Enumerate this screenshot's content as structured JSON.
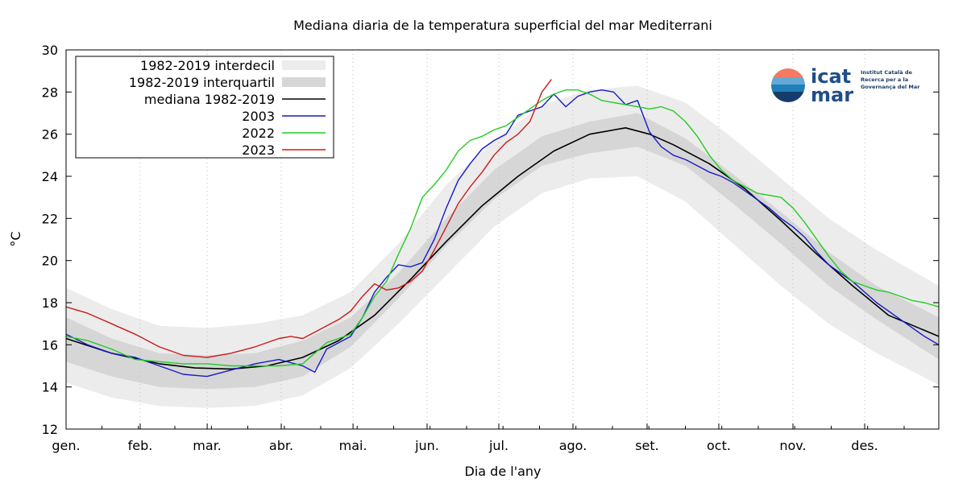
{
  "chart_data": {
    "type": "line",
    "title": "Mediana diaria de la temperatura superficial del mar Mediterrani",
    "xlabel": "Dia de l'any",
    "ylabel": "°C",
    "xlim": [
      1,
      366
    ],
    "ylim": [
      12,
      30
    ],
    "yticks": [
      12,
      14,
      16,
      18,
      20,
      22,
      24,
      26,
      28,
      30
    ],
    "months": [
      {
        "label": "gen.",
        "day": 1
      },
      {
        "label": "feb.",
        "day": 32
      },
      {
        "label": "mar.",
        "day": 60
      },
      {
        "label": "abr.",
        "day": 91
      },
      {
        "label": "mai.",
        "day": 121
      },
      {
        "label": "jun.",
        "day": 152
      },
      {
        "label": "jul.",
        "day": 182
      },
      {
        "label": "ago.",
        "day": 213
      },
      {
        "label": "set.",
        "day": 244
      },
      {
        "label": "oct.",
        "day": 274
      },
      {
        "label": "nov.",
        "day": 305
      },
      {
        "label": "des.",
        "day": 335
      }
    ],
    "grid": "vertical-dotted",
    "legend_position": "top-left",
    "bands": [
      {
        "name": "1982-2019 interdecil",
        "color": "#ececec",
        "x": [
          1,
          20,
          40,
          60,
          80,
          100,
          120,
          140,
          160,
          180,
          200,
          220,
          240,
          260,
          280,
          300,
          320,
          340,
          366
        ],
        "low": [
          14.2,
          13.5,
          13.1,
          13.0,
          13.1,
          13.6,
          14.9,
          17.0,
          19.3,
          21.6,
          23.2,
          23.9,
          24.0,
          22.8,
          20.8,
          18.8,
          17.0,
          15.6,
          14.1
        ],
        "high": [
          18.7,
          17.7,
          16.9,
          16.8,
          17.0,
          17.4,
          18.5,
          20.8,
          23.6,
          25.7,
          27.4,
          28.1,
          28.3,
          27.5,
          25.8,
          23.9,
          22.0,
          20.5,
          18.8
        ]
      },
      {
        "name": "1982-2019 interquartil",
        "color": "#d6d6d6",
        "x": [
          1,
          20,
          40,
          60,
          80,
          100,
          120,
          140,
          160,
          180,
          200,
          220,
          240,
          260,
          280,
          300,
          320,
          340,
          366
        ],
        "low": [
          15.2,
          14.5,
          14.0,
          13.9,
          14.0,
          14.5,
          15.9,
          18.2,
          20.7,
          22.9,
          24.5,
          25.1,
          25.4,
          24.5,
          22.7,
          20.8,
          18.8,
          17.2,
          15.3
        ],
        "high": [
          17.3,
          16.3,
          15.6,
          15.5,
          15.6,
          16.2,
          17.3,
          19.4,
          22.0,
          24.3,
          25.9,
          26.6,
          27.0,
          25.8,
          24.1,
          22.3,
          20.4,
          18.8,
          17.3
        ]
      }
    ],
    "series": [
      {
        "name": "mediana 1982-2019",
        "color": "#000000",
        "x": [
          1,
          20,
          40,
          55,
          70,
          85,
          100,
          115,
          130,
          145,
          160,
          175,
          190,
          205,
          220,
          235,
          245,
          255,
          270,
          285,
          300,
          315,
          330,
          345,
          366
        ],
        "values": [
          16.3,
          15.6,
          15.1,
          14.9,
          14.85,
          15.0,
          15.4,
          16.2,
          17.4,
          19.1,
          20.9,
          22.6,
          24.0,
          25.2,
          26.0,
          26.3,
          26.0,
          25.5,
          24.6,
          23.4,
          21.9,
          20.3,
          18.8,
          17.4,
          16.4
        ]
      },
      {
        "name": "2003",
        "color": "#1a1acc",
        "x": [
          1,
          10,
          20,
          30,
          40,
          50,
          60,
          70,
          80,
          90,
          100,
          105,
          110,
          120,
          125,
          130,
          135,
          140,
          145,
          150,
          155,
          160,
          165,
          170,
          175,
          180,
          185,
          190,
          195,
          200,
          205,
          210,
          215,
          220,
          225,
          230,
          235,
          240,
          245,
          250,
          255,
          260,
          265,
          270,
          275,
          280,
          285,
          290,
          295,
          300,
          305,
          310,
          315,
          320,
          325,
          330,
          335,
          340,
          345,
          350,
          355,
          360,
          366
        ],
        "values": [
          16.5,
          16.0,
          15.6,
          15.4,
          15.0,
          14.6,
          14.5,
          14.8,
          15.1,
          15.3,
          15.0,
          14.7,
          15.8,
          16.4,
          17.3,
          18.5,
          19.2,
          19.8,
          19.7,
          19.9,
          21.0,
          22.5,
          23.8,
          24.6,
          25.3,
          25.7,
          26.0,
          26.9,
          27.1,
          27.3,
          27.9,
          27.3,
          27.8,
          28.0,
          28.1,
          28.0,
          27.4,
          27.6,
          26.1,
          25.4,
          25.0,
          24.8,
          24.5,
          24.2,
          24.0,
          23.7,
          23.3,
          22.9,
          22.5,
          22.0,
          21.6,
          21.1,
          20.4,
          19.8,
          19.4,
          19.0,
          18.5,
          18.0,
          17.6,
          17.2,
          16.8,
          16.4,
          16.0
        ]
      },
      {
        "name": "2022",
        "color": "#22cc22",
        "x": [
          1,
          10,
          20,
          30,
          40,
          50,
          60,
          70,
          80,
          90,
          100,
          105,
          110,
          120,
          125,
          130,
          135,
          140,
          145,
          150,
          155,
          160,
          165,
          170,
          175,
          180,
          185,
          190,
          195,
          200,
          205,
          210,
          215,
          220,
          225,
          230,
          235,
          240,
          245,
          250,
          255,
          260,
          265,
          270,
          275,
          280,
          285,
          290,
          295,
          300,
          305,
          310,
          315,
          320,
          325,
          330,
          335,
          340,
          345,
          350,
          355,
          360,
          366
        ],
        "values": [
          16.4,
          16.2,
          15.8,
          15.3,
          15.2,
          15.1,
          15.1,
          15.0,
          15.0,
          15.0,
          15.1,
          15.6,
          16.1,
          16.5,
          17.3,
          18.3,
          19.0,
          20.3,
          21.5,
          23.0,
          23.6,
          24.3,
          25.2,
          25.7,
          25.9,
          26.2,
          26.4,
          26.8,
          27.2,
          27.6,
          27.9,
          28.1,
          28.1,
          27.9,
          27.6,
          27.5,
          27.4,
          27.3,
          27.2,
          27.3,
          27.1,
          26.6,
          25.9,
          25.0,
          24.3,
          23.8,
          23.5,
          23.2,
          23.1,
          23.0,
          22.5,
          21.8,
          21.0,
          20.2,
          19.5,
          19.0,
          18.8,
          18.6,
          18.5,
          18.3,
          18.1,
          18.0,
          17.8
        ]
      },
      {
        "name": "2023",
        "color": "#cc1a1a",
        "x": [
          1,
          10,
          20,
          30,
          40,
          50,
          60,
          70,
          80,
          90,
          95,
          100,
          105,
          110,
          115,
          120,
          125,
          130,
          135,
          140,
          145,
          150,
          155,
          160,
          165,
          170,
          175,
          180,
          185,
          190,
          195,
          200,
          204
        ],
        "values": [
          17.8,
          17.5,
          17.0,
          16.5,
          15.9,
          15.5,
          15.4,
          15.6,
          15.9,
          16.3,
          16.4,
          16.3,
          16.6,
          16.9,
          17.2,
          17.6,
          18.3,
          18.9,
          18.6,
          18.7,
          19.0,
          19.5,
          20.5,
          21.6,
          22.7,
          23.5,
          24.2,
          25.0,
          25.6,
          26.0,
          26.6,
          28.0,
          28.6
        ]
      }
    ]
  },
  "logo": {
    "word1": "icat",
    "word2": "mar",
    "line1": "Institut Català de",
    "line2": "Recerca per a la",
    "line3": "Governança del Mar",
    "colors": {
      "top": "#f47a63",
      "upper_mid": "#63a8d6",
      "lower_mid": "#1f7fb8",
      "bottom": "#173c6b"
    }
  }
}
